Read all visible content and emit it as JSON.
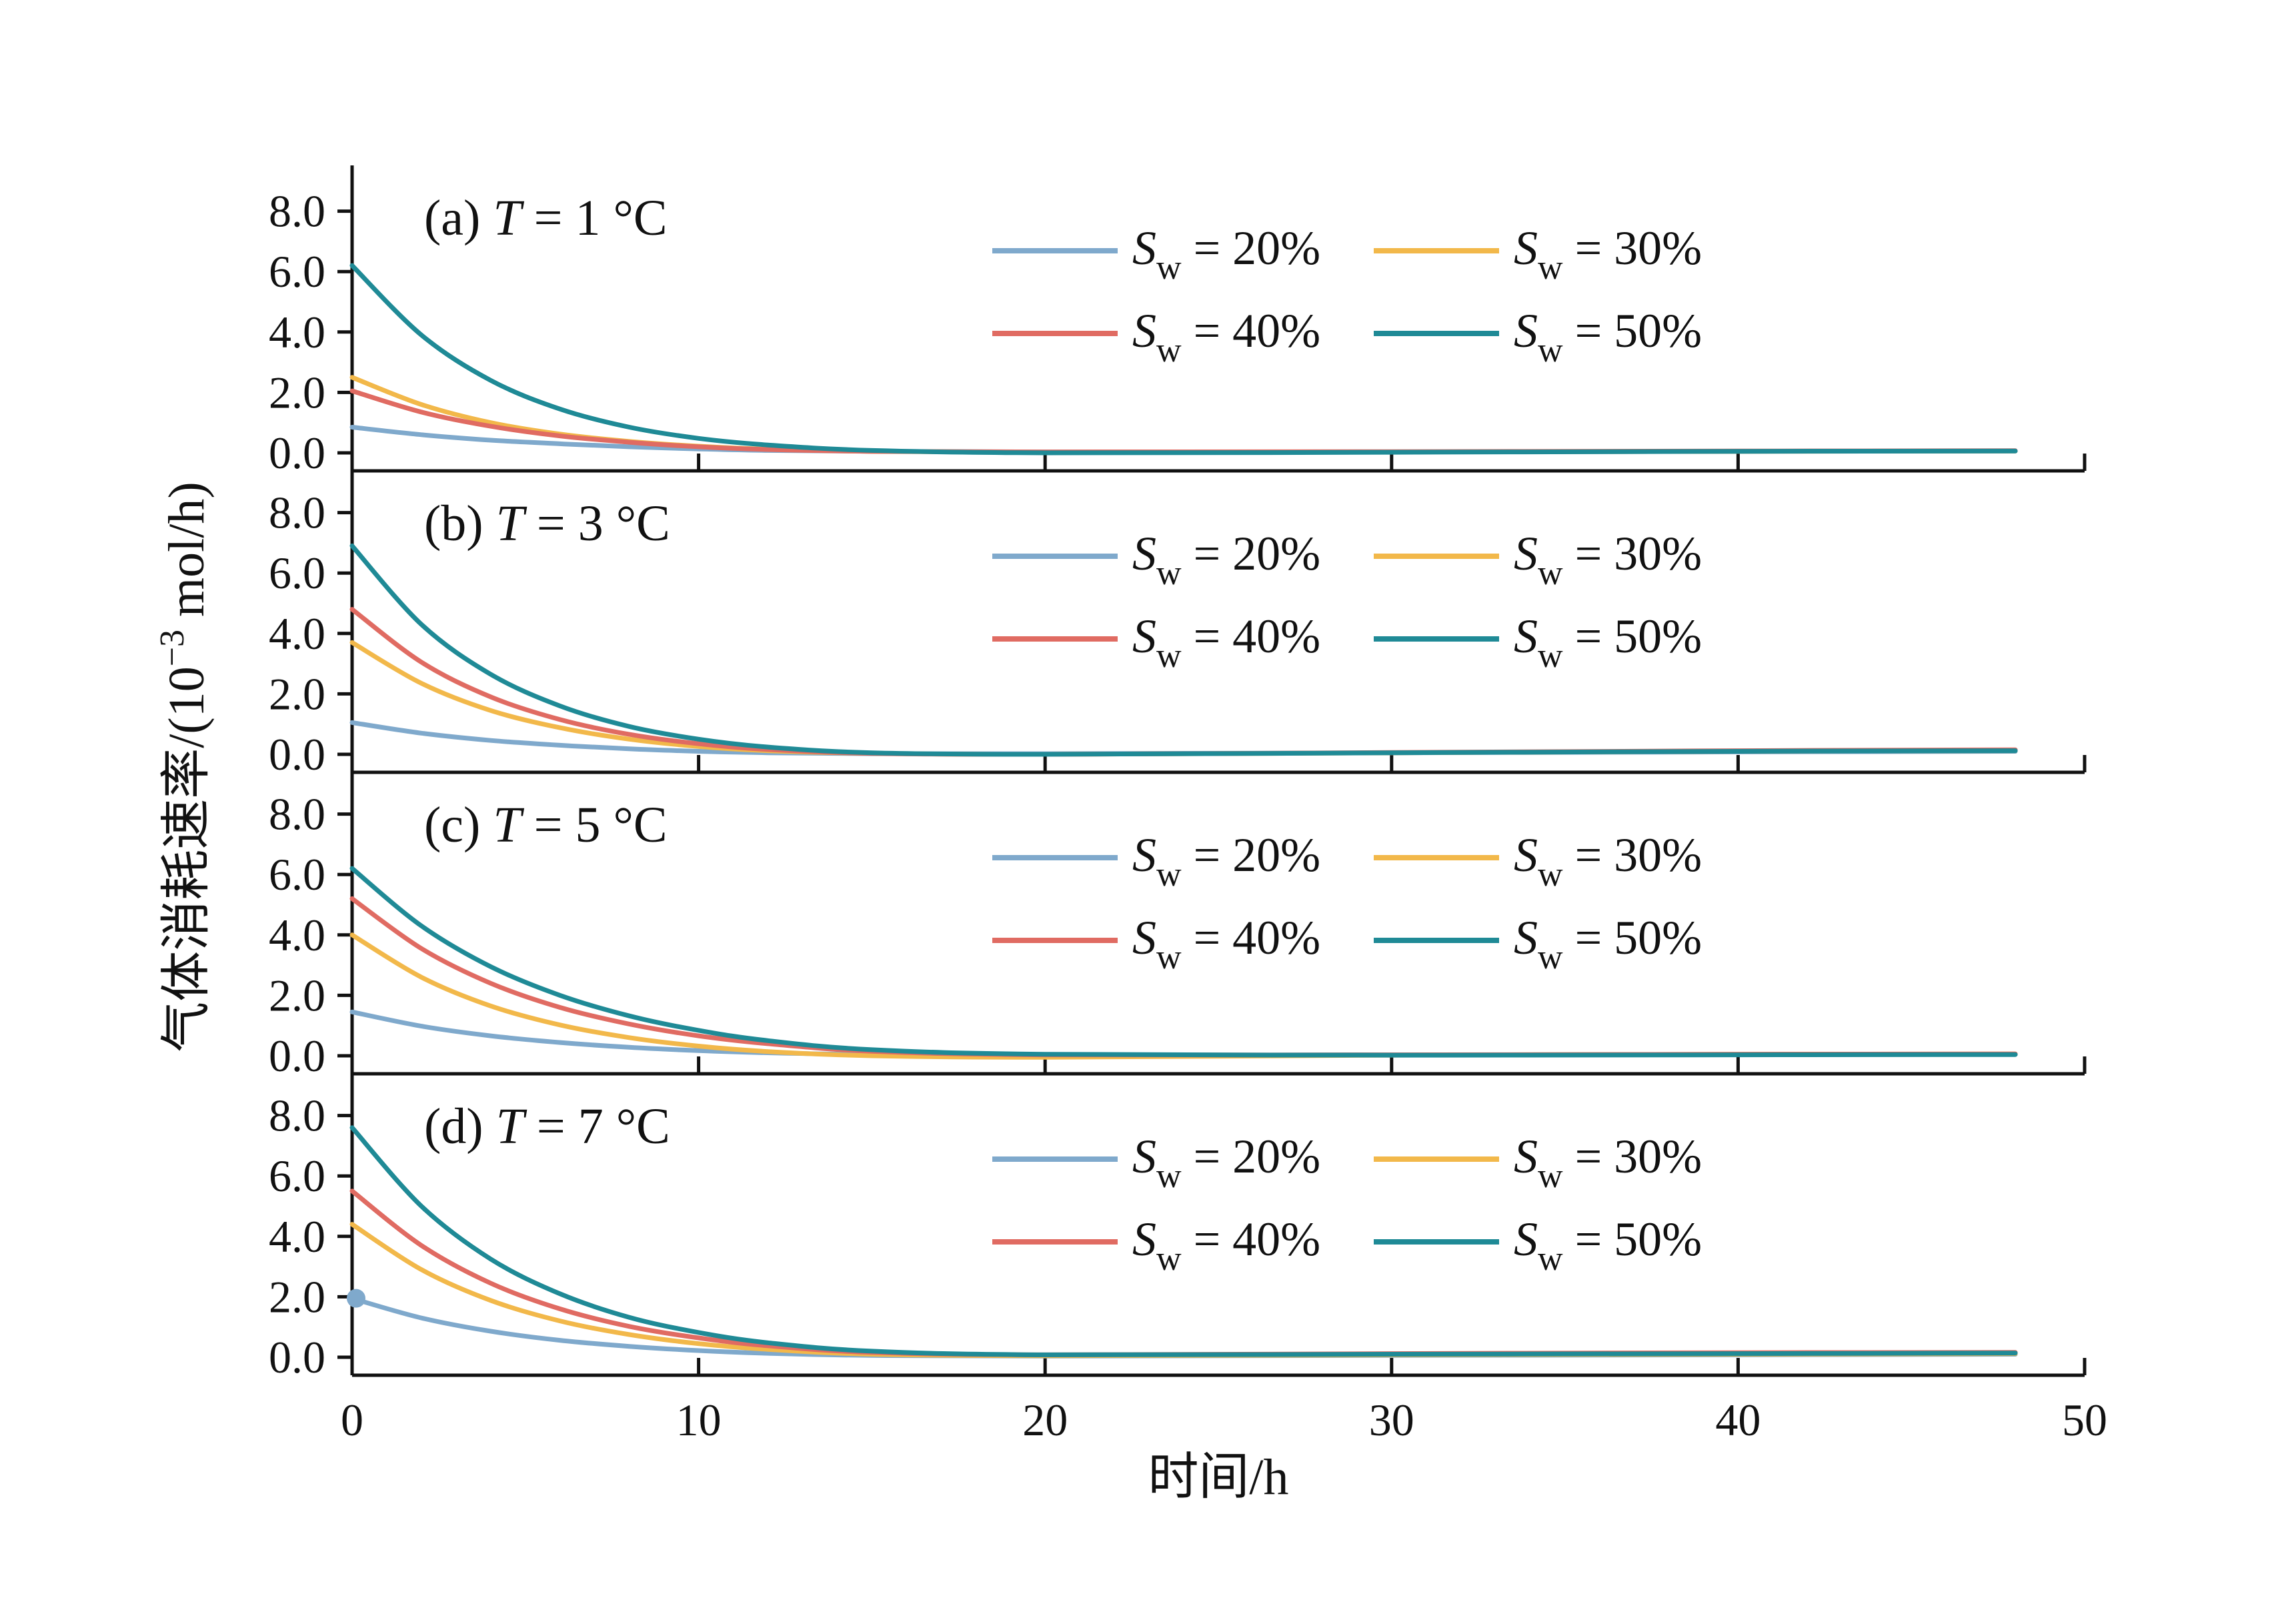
{
  "chart_data": {
    "type": "line",
    "xlabel": "时间/h",
    "ylabel_main": "气体消耗速率/(10",
    "ylabel_sup": "−3",
    "ylabel_unit": " mol/h)",
    "xlim": [
      0,
      50
    ],
    "ylim": [
      -0.3,
      9.5
    ],
    "x_ticks": [
      "0",
      "10",
      "20",
      "30",
      "40",
      "50"
    ],
    "y_ticks": [
      "0.0",
      "2.0",
      "4.0",
      "6.0",
      "8.0"
    ],
    "x_tick_values": [
      0,
      10,
      20,
      30,
      40,
      50
    ],
    "y_tick_values": [
      0,
      2,
      4,
      6,
      8
    ],
    "legend_placement": "upper-right (2 columns)",
    "series_colors": {
      "Sw20": "#7fa9cc",
      "Sw30": "#f2b84a",
      "Sw40": "#e06b62",
      "Sw50": "#1f8a96"
    },
    "panels": [
      {
        "label": "(a)",
        "temp_var": "T",
        "temp_value": " = 1 °C",
        "legend": [
          {
            "s": "S",
            "sub": "w",
            "text": " = 20%",
            "key": "Sw20"
          },
          {
            "s": "S",
            "sub": "w",
            "text": " = 30%",
            "key": "Sw30"
          },
          {
            "s": "S",
            "sub": "w",
            "text": " = 40%",
            "key": "Sw40"
          },
          {
            "s": "S",
            "sub": "w",
            "text": " = 50%",
            "key": "Sw50"
          }
        ],
        "series": [
          {
            "key": "Sw20",
            "x": [
              0,
              2,
              4,
              6,
              8,
              10,
              12,
              15,
              20,
              30,
              40,
              48
            ],
            "y": [
              0.85,
              0.6,
              0.42,
              0.3,
              0.2,
              0.13,
              0.08,
              0.05,
              0.03,
              0.03,
              0.05,
              0.06
            ]
          },
          {
            "key": "Sw30",
            "x": [
              0,
              2,
              4,
              6,
              8,
              10,
              12,
              15,
              20,
              30,
              40,
              48
            ],
            "y": [
              2.5,
              1.6,
              1.0,
              0.62,
              0.38,
              0.22,
              0.12,
              0.05,
              0.02,
              0.03,
              0.05,
              0.06
            ]
          },
          {
            "key": "Sw40",
            "x": [
              0,
              2,
              4,
              6,
              8,
              10,
              12,
              15,
              20,
              30,
              40,
              48
            ],
            "y": [
              2.05,
              1.35,
              0.88,
              0.56,
              0.35,
              0.2,
              0.11,
              0.05,
              0.03,
              0.04,
              0.06,
              0.07
            ]
          },
          {
            "key": "Sw50",
            "x": [
              0,
              2,
              4,
              6,
              8,
              10,
              12,
              15,
              20,
              30,
              40,
              48
            ],
            "y": [
              6.2,
              3.9,
              2.4,
              1.45,
              0.85,
              0.48,
              0.26,
              0.08,
              0.0,
              0.02,
              0.05,
              0.06
            ]
          }
        ]
      },
      {
        "label": "(b)",
        "temp_var": "T",
        "temp_value": " = 3 °C",
        "legend": [
          {
            "s": "S",
            "sub": "w",
            "text": " = 20%",
            "key": "Sw20"
          },
          {
            "s": "S",
            "sub": "w",
            "text": " = 30%",
            "key": "Sw30"
          },
          {
            "s": "S",
            "sub": "w",
            "text": " = 40%",
            "key": "Sw40"
          },
          {
            "s": "S",
            "sub": "w",
            "text": " = 50%",
            "key": "Sw50"
          }
        ],
        "series": [
          {
            "key": "Sw20",
            "x": [
              0,
              2,
              4,
              6,
              8,
              10,
              12,
              15,
              20,
              30,
              40,
              48
            ],
            "y": [
              1.05,
              0.7,
              0.46,
              0.3,
              0.18,
              0.1,
              0.05,
              0.02,
              0.02,
              0.05,
              0.08,
              0.1
            ]
          },
          {
            "key": "Sw30",
            "x": [
              0,
              2,
              4,
              6,
              8,
              10,
              12,
              15,
              20,
              30,
              40,
              48
            ],
            "y": [
              3.7,
              2.35,
              1.45,
              0.88,
              0.5,
              0.26,
              0.12,
              0.03,
              0.0,
              0.05,
              0.1,
              0.12
            ]
          },
          {
            "key": "Sw40",
            "x": [
              0,
              2,
              4,
              6,
              8,
              10,
              12,
              15,
              20,
              30,
              40,
              48
            ],
            "y": [
              4.8,
              3.05,
              1.9,
              1.15,
              0.66,
              0.35,
              0.16,
              0.03,
              0.0,
              0.06,
              0.12,
              0.15
            ]
          },
          {
            "key": "Sw50",
            "x": [
              0,
              2,
              4,
              6,
              8,
              10,
              12,
              15,
              20,
              30,
              40,
              48
            ],
            "y": [
              6.9,
              4.3,
              2.65,
              1.6,
              0.92,
              0.5,
              0.24,
              0.05,
              0.0,
              0.05,
              0.1,
              0.12
            ]
          }
        ]
      },
      {
        "label": "(c)",
        "temp_var": "T",
        "temp_value": " = 5 °C",
        "legend": [
          {
            "s": "S",
            "sub": "w",
            "text": " = 20%",
            "key": "Sw20"
          },
          {
            "s": "S",
            "sub": "w",
            "text": " = 30%",
            "key": "Sw30"
          },
          {
            "s": "S",
            "sub": "w",
            "text": " = 40%",
            "key": "Sw40"
          },
          {
            "s": "S",
            "sub": "w",
            "text": " = 50%",
            "key": "Sw50"
          }
        ],
        "series": [
          {
            "key": "Sw20",
            "x": [
              0,
              2,
              4,
              6,
              8,
              10,
              12,
              15,
              20,
              30,
              40,
              48
            ],
            "y": [
              1.45,
              0.98,
              0.66,
              0.44,
              0.28,
              0.17,
              0.1,
              0.04,
              0.02,
              0.03,
              0.04,
              0.05
            ]
          },
          {
            "key": "Sw30",
            "x": [
              0,
              2,
              4,
              6,
              8,
              10,
              12,
              15,
              20,
              30,
              40,
              48
            ],
            "y": [
              4.0,
              2.6,
              1.65,
              1.02,
              0.6,
              0.32,
              0.14,
              0.0,
              -0.05,
              0.02,
              0.05,
              0.06
            ]
          },
          {
            "key": "Sw40",
            "x": [
              0,
              2,
              4,
              6,
              8,
              10,
              12,
              15,
              20,
              30,
              40,
              48
            ],
            "y": [
              5.2,
              3.55,
              2.4,
              1.6,
              1.05,
              0.66,
              0.4,
              0.15,
              0.03,
              0.03,
              0.05,
              0.06
            ]
          },
          {
            "key": "Sw50",
            "x": [
              0,
              2,
              4,
              6,
              8,
              10,
              12,
              15,
              20,
              30,
              40,
              48
            ],
            "y": [
              6.2,
              4.3,
              2.95,
              2.0,
              1.32,
              0.84,
              0.5,
              0.2,
              0.05,
              0.02,
              0.03,
              0.04
            ]
          }
        ]
      },
      {
        "label": "(d)",
        "temp_var": "T",
        "temp_value": " = 7 °C",
        "legend": [
          {
            "s": "S",
            "sub": "w",
            "text": " = 20%",
            "key": "Sw20"
          },
          {
            "s": "S",
            "sub": "w",
            "text": " = 30%",
            "key": "Sw30"
          },
          {
            "s": "S",
            "sub": "w",
            "text": " = 40%",
            "key": "Sw40"
          },
          {
            "s": "S",
            "sub": "w",
            "text": " = 50%",
            "key": "Sw50"
          }
        ],
        "series": [
          {
            "key": "Sw20",
            "x": [
              0,
              2,
              4,
              6,
              8,
              10,
              12,
              15,
              20,
              30,
              40,
              48
            ],
            "y": [
              1.95,
              1.3,
              0.86,
              0.56,
              0.36,
              0.22,
              0.13,
              0.06,
              0.04,
              0.06,
              0.08,
              0.1
            ]
          },
          {
            "key": "Sw30",
            "x": [
              0,
              2,
              4,
              6,
              8,
              10,
              12,
              15,
              20,
              30,
              40,
              48
            ],
            "y": [
              4.4,
              2.9,
              1.88,
              1.2,
              0.75,
              0.45,
              0.26,
              0.1,
              0.05,
              0.08,
              0.1,
              0.12
            ]
          },
          {
            "key": "Sw40",
            "x": [
              0,
              2,
              4,
              6,
              8,
              10,
              12,
              15,
              20,
              30,
              40,
              48
            ],
            "y": [
              5.5,
              3.7,
              2.45,
              1.6,
              1.02,
              0.64,
              0.38,
              0.16,
              0.08,
              0.12,
              0.15,
              0.16
            ]
          },
          {
            "key": "Sw50",
            "x": [
              0,
              2,
              4,
              6,
              8,
              10,
              12,
              15,
              20,
              30,
              40,
              48
            ],
            "y": [
              7.6,
              5.0,
              3.25,
              2.1,
              1.32,
              0.82,
              0.48,
              0.2,
              0.08,
              0.1,
              0.12,
              0.14
            ]
          }
        ]
      }
    ],
    "marker": {
      "panel": 3,
      "key": "Sw20",
      "x": 0,
      "y": 1.95
    }
  }
}
